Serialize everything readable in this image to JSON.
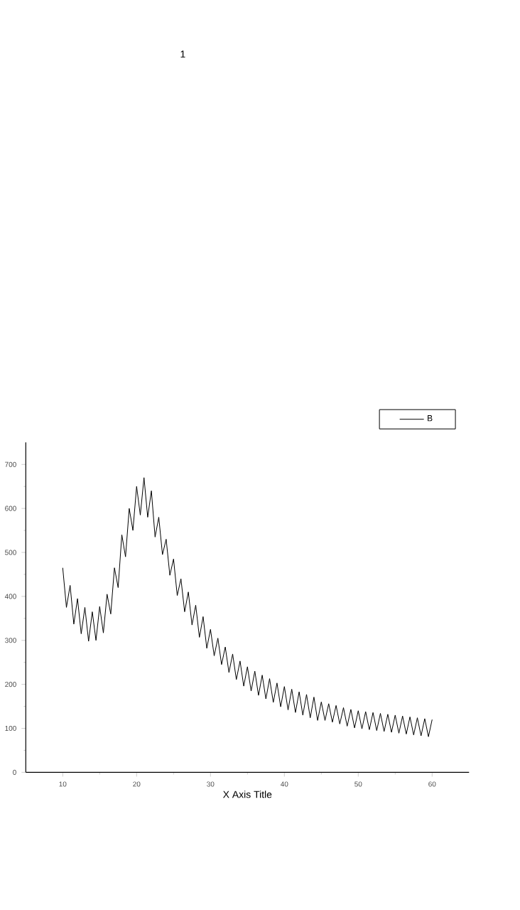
{
  "chart_data": {
    "type": "line",
    "title": "1",
    "xlabel": "X Axis Title",
    "xlim": [
      5,
      65
    ],
    "xticks": [
      10,
      20,
      30,
      40,
      50,
      60
    ],
    "ylim": [
      0,
      750
    ],
    "yticks": [
      0,
      100,
      200,
      300,
      400,
      500,
      600,
      700
    ],
    "legend": "top right",
    "grid": false,
    "marker": "none",
    "line_style": "solid",
    "x": [
      10,
      10.5,
      11,
      11.5,
      12,
      12.5,
      13,
      13.5,
      14,
      14.5,
      15,
      15.5,
      16,
      16.5,
      17,
      17.5,
      18,
      18.5,
      19,
      19.5,
      20,
      20.5,
      21,
      21.5,
      22,
      22.5,
      23,
      23.5,
      24,
      24.5,
      25,
      25.5,
      26,
      26.5,
      27,
      27.5,
      28,
      28.5,
      29,
      29.5,
      30,
      30.5,
      31,
      31.5,
      32,
      32.5,
      33,
      33.5,
      34,
      34.5,
      35,
      35.5,
      36,
      36.5,
      37,
      37.5,
      38,
      38.5,
      39,
      39.5,
      40,
      40.5,
      41,
      41.5,
      42,
      42.5,
      43,
      43.5,
      44,
      44.5,
      45,
      45.5,
      46,
      46.5,
      47,
      47.5,
      48,
      48.5,
      49,
      49.5,
      50,
      50.5,
      51,
      51.5,
      52,
      52.5,
      53,
      53.5,
      54,
      54.5,
      55,
      55.5,
      56,
      56.5,
      57,
      57.5,
      58,
      58.5,
      59,
      59.5,
      60
    ],
    "series": [
      {
        "name": "B",
        "color": "#000000",
        "values": [
          465,
          375,
          425,
          337,
          395,
          315,
          375,
          298,
          365,
          300,
          377,
          317,
          405,
          360,
          465,
          420,
          540,
          490,
          600,
          550,
          650,
          585,
          670,
          580,
          640,
          535,
          580,
          495,
          530,
          448,
          485,
          402,
          440,
          365,
          410,
          335,
          380,
          307,
          354,
          282,
          325,
          265,
          305,
          245,
          285,
          227,
          269,
          211,
          253,
          196,
          240,
          185,
          230,
          175,
          221,
          167,
          213,
          159,
          203,
          149,
          195,
          142,
          189,
          136,
          183,
          130,
          177,
          124,
          171,
          118,
          160,
          118,
          156,
          114,
          152,
          110,
          147,
          105,
          143,
          101,
          140,
          99,
          138,
          97,
          136,
          95,
          134,
          93,
          132,
          91,
          130,
          89,
          128,
          87,
          126,
          85,
          124,
          83,
          122,
          81,
          120
        ]
      }
    ]
  }
}
